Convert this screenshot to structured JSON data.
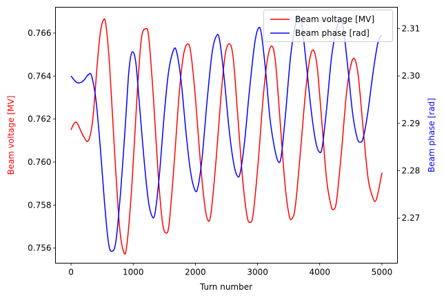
{
  "chart_data": {
    "type": "line",
    "title": "",
    "xlabel": "Turn number",
    "ylabel_left": "Beam voltage [MV]",
    "ylabel_right": "Beam phase [rad]",
    "xlim": [
      -250,
      5250
    ],
    "ylim_left": [
      0.7553,
      0.7672
    ],
    "ylim_right": [
      2.2605,
      2.3145
    ],
    "xticks": [
      0,
      1000,
      2000,
      3000,
      4000,
      5000
    ],
    "yticks_left": [
      0.756,
      0.758,
      0.76,
      0.762,
      0.764,
      0.766
    ],
    "yticks_right": [
      2.27,
      2.28,
      2.29,
      2.3,
      2.31
    ],
    "grid": false,
    "legend_position": "top-right",
    "series": [
      {
        "name": "Beam voltage [MV]",
        "axis": "left",
        "color": "#ff0000",
        "points": [
          [
            0,
            0.7615
          ],
          [
            50,
            0.7618
          ],
          [
            100,
            0.7618
          ],
          [
            200,
            0.7612
          ],
          [
            280,
            0.761
          ],
          [
            350,
            0.762
          ],
          [
            420,
            0.7645
          ],
          [
            470,
            0.766
          ],
          [
            520,
            0.7666
          ],
          [
            560,
            0.7664
          ],
          [
            620,
            0.7645
          ],
          [
            700,
            0.7605
          ],
          [
            780,
            0.757
          ],
          [
            850,
            0.7558
          ],
          [
            900,
            0.7562
          ],
          [
            980,
            0.759
          ],
          [
            1060,
            0.763
          ],
          [
            1130,
            0.7657
          ],
          [
            1200,
            0.7662
          ],
          [
            1250,
            0.7658
          ],
          [
            1320,
            0.7632
          ],
          [
            1400,
            0.7595
          ],
          [
            1470,
            0.7572
          ],
          [
            1530,
            0.7567
          ],
          [
            1580,
            0.7572
          ],
          [
            1660,
            0.76
          ],
          [
            1740,
            0.7632
          ],
          [
            1810,
            0.765
          ],
          [
            1880,
            0.7655
          ],
          [
            1930,
            0.765
          ],
          [
            2000,
            0.763
          ],
          [
            2080,
            0.76
          ],
          [
            2150,
            0.758
          ],
          [
            2200,
            0.7573
          ],
          [
            2250,
            0.7576
          ],
          [
            2330,
            0.76
          ],
          [
            2410,
            0.763
          ],
          [
            2480,
            0.765
          ],
          [
            2550,
            0.7655
          ],
          [
            2610,
            0.7648
          ],
          [
            2680,
            0.7622
          ],
          [
            2760,
            0.7592
          ],
          [
            2830,
            0.7575
          ],
          [
            2880,
            0.7572
          ],
          [
            2930,
            0.7576
          ],
          [
            3010,
            0.76
          ],
          [
            3090,
            0.763
          ],
          [
            3160,
            0.7648
          ],
          [
            3230,
            0.7654
          ],
          [
            3290,
            0.7646
          ],
          [
            3360,
            0.762
          ],
          [
            3440,
            0.759
          ],
          [
            3510,
            0.7575
          ],
          [
            3560,
            0.7574
          ],
          [
            3610,
            0.758
          ],
          [
            3690,
            0.7605
          ],
          [
            3770,
            0.7632
          ],
          [
            3840,
            0.7648
          ],
          [
            3900,
            0.7652
          ],
          [
            3960,
            0.7644
          ],
          [
            4030,
            0.762
          ],
          [
            4110,
            0.7592
          ],
          [
            4180,
            0.758
          ],
          [
            4220,
            0.7578
          ],
          [
            4270,
            0.7582
          ],
          [
            4350,
            0.7605
          ],
          [
            4430,
            0.7632
          ],
          [
            4500,
            0.7645
          ],
          [
            4560,
            0.7648
          ],
          [
            4620,
            0.764
          ],
          [
            4700,
            0.7615
          ],
          [
            4780,
            0.7592
          ],
          [
            4860,
            0.7583
          ],
          [
            4900,
            0.7582
          ],
          [
            4940,
            0.7586
          ],
          [
            5000,
            0.7595
          ]
        ]
      },
      {
        "name": "Beam phase [rad]",
        "axis": "right",
        "color": "#0000ff",
        "points": [
          [
            0,
            2.3
          ],
          [
            60,
            2.299
          ],
          [
            120,
            2.2985
          ],
          [
            200,
            2.299
          ],
          [
            280,
            2.3003
          ],
          [
            330,
            2.3
          ],
          [
            400,
            2.295
          ],
          [
            470,
            2.285
          ],
          [
            540,
            2.273
          ],
          [
            600,
            2.265
          ],
          [
            650,
            2.263
          ],
          [
            720,
            2.265
          ],
          [
            800,
            2.276
          ],
          [
            880,
            2.291
          ],
          [
            930,
            2.301
          ],
          [
            980,
            2.305
          ],
          [
            1040,
            2.303
          ],
          [
            1100,
            2.294
          ],
          [
            1170,
            2.283
          ],
          [
            1240,
            2.274
          ],
          [
            1300,
            2.2705
          ],
          [
            1350,
            2.271
          ],
          [
            1420,
            2.279
          ],
          [
            1500,
            2.292
          ],
          [
            1570,
            2.301
          ],
          [
            1650,
            2.3055
          ],
          [
            1700,
            2.305
          ],
          [
            1770,
            2.299
          ],
          [
            1850,
            2.288
          ],
          [
            1920,
            2.28
          ],
          [
            1990,
            2.276
          ],
          [
            2040,
            2.2765
          ],
          [
            2110,
            2.283
          ],
          [
            2190,
            2.295
          ],
          [
            2270,
            2.305
          ],
          [
            2340,
            2.3085
          ],
          [
            2390,
            2.3075
          ],
          [
            2460,
            2.3
          ],
          [
            2540,
            2.289
          ],
          [
            2610,
            2.282
          ],
          [
            2670,
            2.279
          ],
          [
            2720,
            2.2795
          ],
          [
            2790,
            2.286
          ],
          [
            2870,
            2.297
          ],
          [
            2950,
            2.3065
          ],
          [
            3010,
            2.31
          ],
          [
            3060,
            2.309
          ],
          [
            3130,
            2.301
          ],
          [
            3200,
            2.291
          ],
          [
            3270,
            2.285
          ],
          [
            3330,
            2.282
          ],
          [
            3380,
            2.283
          ],
          [
            3450,
            2.292
          ],
          [
            3530,
            2.304
          ],
          [
            3610,
            2.311
          ],
          [
            3660,
            2.3125
          ],
          [
            3710,
            2.311
          ],
          [
            3780,
            2.303
          ],
          [
            3860,
            2.293
          ],
          [
            3930,
            2.2865
          ],
          [
            3990,
            2.284
          ],
          [
            4040,
            2.285
          ],
          [
            4110,
            2.293
          ],
          [
            4190,
            2.304
          ],
          [
            4270,
            2.31
          ],
          [
            4330,
            2.3115
          ],
          [
            4380,
            2.31
          ],
          [
            4450,
            2.302
          ],
          [
            4530,
            2.292
          ],
          [
            4600,
            2.287
          ],
          [
            4650,
            2.286
          ],
          [
            4700,
            2.287
          ],
          [
            4770,
            2.292
          ],
          [
            4850,
            2.3
          ],
          [
            4920,
            2.306
          ],
          [
            4960,
            2.308
          ],
          [
            5000,
            2.3085
          ]
        ]
      }
    ]
  }
}
